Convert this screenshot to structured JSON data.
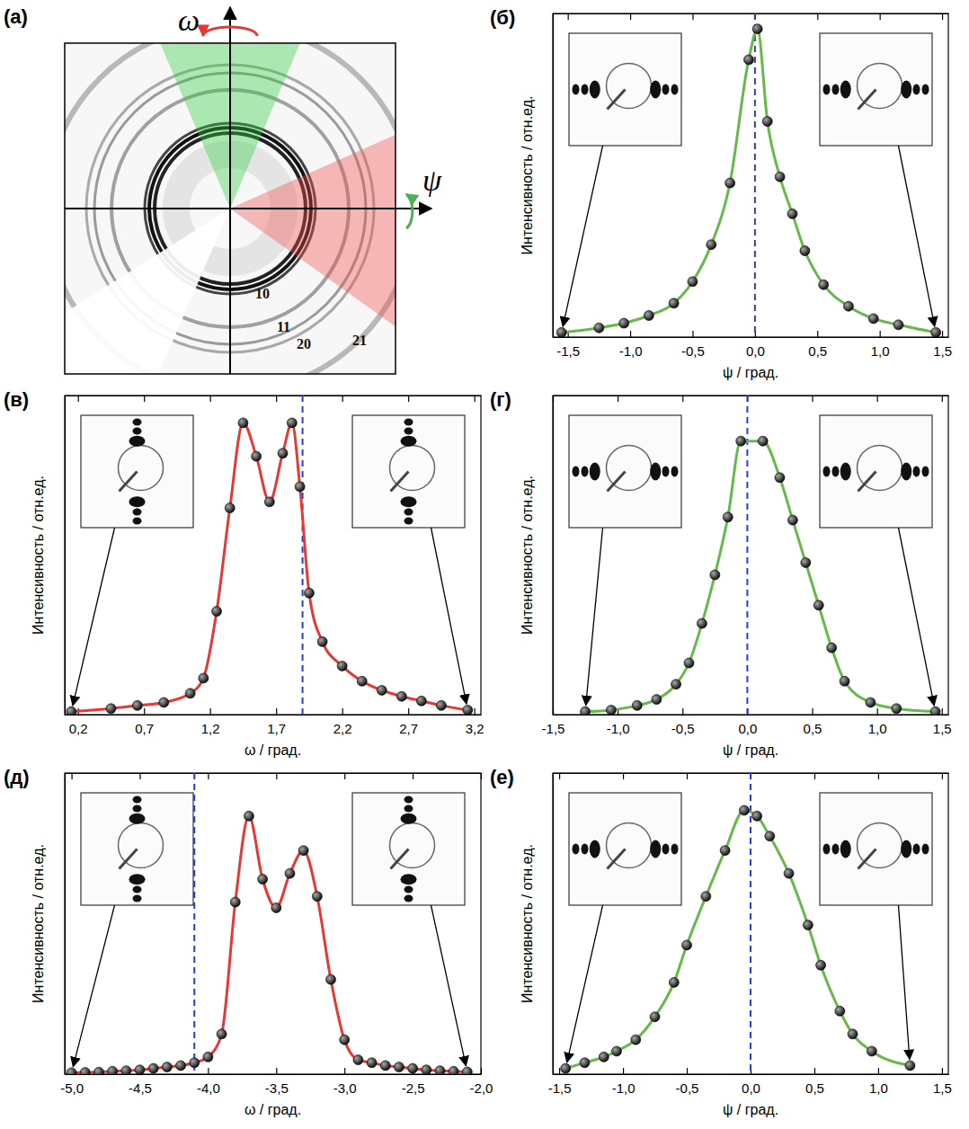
{
  "diagram": {
    "panel": "(а)",
    "axis_labels": [
      "ω",
      "ψ"
    ],
    "ring_labels": [
      "10",
      "11",
      "20",
      "21"
    ]
  },
  "chart_data": [
    {
      "type": "line",
      "panel": "(б)",
      "marker": "circle",
      "color": "#66b94a",
      "tick_labels": "x",
      "xlabel": "ψ / град.",
      "ylabel": "Интенсивность / отн.ед.",
      "xlim": [
        -1.62,
        1.55
      ],
      "ylim": [
        0,
        105
      ],
      "xticks": [
        {
          "value": -1.5,
          "label": "-1,5"
        },
        {
          "value": -1.0,
          "label": "-1,0"
        },
        {
          "value": -0.5,
          "label": "-0,5"
        },
        {
          "value": 0,
          "label": "0,0"
        },
        {
          "value": 0.5,
          "label": "0,5"
        },
        {
          "value": 1.0,
          "label": "1,0"
        },
        {
          "value": 1.5,
          "label": "1,5"
        }
      ],
      "dashed_line_x": 0,
      "x": [
        -1.55,
        -1.25,
        -1.05,
        -0.85,
        -0.65,
        -0.5,
        -0.35,
        -0.2,
        -0.05,
        0.02,
        0.1,
        0.2,
        0.3,
        0.4,
        0.55,
        0.75,
        0.95,
        1.15,
        1.45
      ],
      "values": [
        1.5,
        3,
        4.5,
        7,
        11,
        18,
        30,
        50,
        90,
        100,
        70,
        52,
        40,
        28,
        17,
        10,
        6,
        4,
        1.5
      ]
    },
    {
      "type": "line",
      "panel": "(в)",
      "marker": "circle",
      "color": "#e53935",
      "tick_labels": "x",
      "xlabel": "ω / град.",
      "ylabel": "Интенсивность / отн.ед.",
      "xlim": [
        0.1,
        3.25
      ],
      "ylim": [
        0,
        105
      ],
      "xticks": [
        {
          "value": 0.2,
          "label": "0,2"
        },
        {
          "value": 0.7,
          "label": "0,7"
        },
        {
          "value": 1.2,
          "label": "1,2"
        },
        {
          "value": 1.7,
          "label": "1,7"
        },
        {
          "value": 2.2,
          "label": "2,2"
        },
        {
          "value": 2.7,
          "label": "2,7"
        },
        {
          "value": 3.2,
          "label": "3,2"
        }
      ],
      "dashed_line_x": 1.9,
      "x": [
        0.15,
        0.45,
        0.65,
        0.85,
        1.05,
        1.15,
        1.25,
        1.35,
        1.45,
        1.55,
        1.65,
        1.75,
        1.82,
        1.88,
        1.95,
        2.05,
        2.2,
        2.35,
        2.5,
        2.65,
        2.8,
        2.95,
        3.15
      ],
      "values": [
        1,
        2,
        3,
        4,
        7,
        12,
        34,
        68,
        96,
        85,
        70,
        86,
        96,
        75,
        40,
        24,
        16,
        11,
        8,
        6,
        4.5,
        3,
        1.5
      ]
    },
    {
      "type": "line",
      "panel": "(г)",
      "marker": "circle",
      "color": "#66b94a",
      "tick_labels": "x",
      "xlabel": "ψ / град.",
      "ylabel": "Интенсивность / отн.ед.",
      "xlim": [
        -1.5,
        1.55
      ],
      "ylim": [
        0,
        105
      ],
      "xticks": [
        {
          "value": -1.5,
          "label": "-1,5"
        },
        {
          "value": -1.0,
          "label": "-1,0"
        },
        {
          "value": -0.5,
          "label": "-0,5"
        },
        {
          "value": 0,
          "label": "0,0"
        },
        {
          "value": 0.5,
          "label": "0,5"
        },
        {
          "value": 1.0,
          "label": "1,0"
        },
        {
          "value": 1.5,
          "label": "1,5"
        }
      ],
      "dashed_line_x": 0,
      "x": [
        -1.25,
        -1.05,
        -0.85,
        -0.7,
        -0.55,
        -0.45,
        -0.35,
        -0.25,
        -0.15,
        -0.05,
        0.12,
        0.25,
        0.35,
        0.45,
        0.55,
        0.65,
        0.75,
        0.95,
        1.15,
        1.45
      ],
      "values": [
        1,
        1.5,
        3,
        5,
        10,
        17,
        30,
        46,
        65,
        90,
        90,
        78,
        64,
        50,
        36,
        22,
        11,
        4,
        2,
        1
      ]
    },
    {
      "type": "line",
      "panel": "(д)",
      "marker": "circle",
      "color": "#e53935",
      "tick_labels": "x",
      "xlabel": "ω / град.",
      "ylabel": "Интенсивность / отн.ед.",
      "xlim": [
        -5.05,
        -2.0
      ],
      "ylim": [
        0,
        105
      ],
      "xticks": [
        {
          "value": -5.0,
          "label": "-5,0"
        },
        {
          "value": -4.5,
          "label": "-4,5"
        },
        {
          "value": -4.0,
          "label": "-4,0"
        },
        {
          "value": -3.5,
          "label": "-3,5"
        },
        {
          "value": -3.0,
          "label": "-3,0"
        },
        {
          "value": -2.5,
          "label": "-2,5"
        },
        {
          "value": -2.0,
          "label": "-2,0"
        }
      ],
      "dashed_line_x": -4.1,
      "x": [
        -5.0,
        -4.9,
        -4.8,
        -4.7,
        -4.6,
        -4.5,
        -4.4,
        -4.3,
        -4.2,
        -4.1,
        -4.0,
        -3.9,
        -3.8,
        -3.7,
        -3.6,
        -3.5,
        -3.4,
        -3.3,
        -3.2,
        -3.1,
        -3.0,
        -2.9,
        -2.8,
        -2.7,
        -2.6,
        -2.5,
        -2.4,
        -2.3,
        -2.2,
        -2.1
      ],
      "values": [
        0.5,
        0.6,
        0.7,
        1,
        1.2,
        1.5,
        2,
        2.5,
        3,
        4,
        6,
        14,
        60,
        90,
        68,
        58,
        70,
        78,
        62,
        33,
        12,
        5,
        4,
        3,
        2.5,
        2,
        1.5,
        1.2,
        1,
        0.8
      ]
    },
    {
      "type": "line",
      "panel": "(е)",
      "marker": "circle",
      "color": "#66b94a",
      "tick_labels": "x",
      "xlabel": "ψ / град.",
      "ylabel": "Интенсивность / отн.ед.",
      "xlim": [
        -1.55,
        1.55
      ],
      "ylim": [
        0,
        105
      ],
      "xticks": [
        {
          "value": -1.5,
          "label": "-1,5"
        },
        {
          "value": -1.0,
          "label": "-1,0"
        },
        {
          "value": -0.5,
          "label": "-0,5"
        },
        {
          "value": 0,
          "label": "0,0"
        },
        {
          "value": 0.5,
          "label": "0,5"
        },
        {
          "value": 1.0,
          "label": "1,0"
        },
        {
          "value": 1.5,
          "label": "1,5"
        }
      ],
      "dashed_line_x": 0,
      "x": [
        -1.45,
        -1.3,
        -1.15,
        -1.05,
        -0.9,
        -0.75,
        -0.6,
        -0.5,
        -0.35,
        -0.2,
        -0.05,
        0.05,
        0.15,
        0.3,
        0.45,
        0.55,
        0.7,
        0.8,
        0.95,
        1.25
      ],
      "values": [
        2,
        4,
        6,
        8,
        12,
        20,
        32,
        45,
        62,
        78,
        92,
        90,
        83,
        70,
        52,
        38,
        22,
        14,
        8,
        3
      ]
    }
  ]
}
